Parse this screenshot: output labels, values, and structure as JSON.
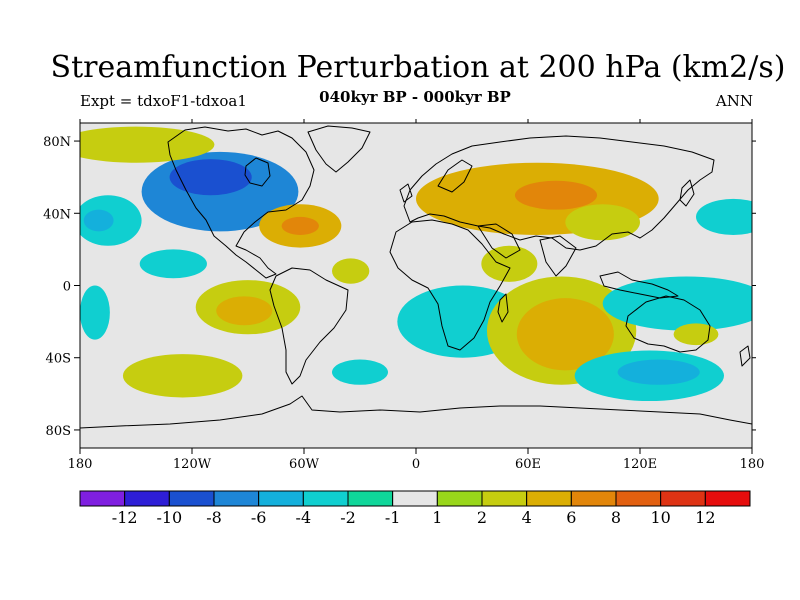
{
  "figure": {
    "title": "Streamfunction Perturbation at 200 hPa (km2/s)",
    "left_label": "Expt = tdxoF1-tdxoa1",
    "center_label": "040kyr BP - 000kyr BP",
    "right_label": "ANN"
  },
  "axes": {
    "lon_ticks": [
      {
        "lon": -180,
        "label": "180"
      },
      {
        "lon": -120,
        "label": "120W"
      },
      {
        "lon": -60,
        "label": "60W"
      },
      {
        "lon": 0,
        "label": "0"
      },
      {
        "lon": 60,
        "label": "60E"
      },
      {
        "lon": 120,
        "label": "120E"
      },
      {
        "lon": 180,
        "label": "180"
      }
    ],
    "lat_ticks": [
      {
        "lat": 80,
        "label": "80N"
      },
      {
        "lat": 40,
        "label": "40N"
      },
      {
        "lat": 0,
        "label": "0"
      },
      {
        "lat": -40,
        "label": "40S"
      },
      {
        "lat": -80,
        "label": "80S"
      }
    ],
    "lon_range": [
      -180,
      180
    ],
    "lat_range": [
      -90,
      90
    ]
  },
  "colorbar": {
    "colors": [
      "#7f1fe0",
      "#2e1ed6",
      "#1a50d0",
      "#1e86d6",
      "#14b0dc",
      "#10cfd0",
      "#10d69a",
      "#e6e6e6",
      "#99d61a",
      "#c6cd10",
      "#dbae04",
      "#e2860a",
      "#e26010",
      "#de3314",
      "#e60d0d"
    ],
    "labels": [
      "-12",
      "-10",
      "-8",
      "-6",
      "-4",
      "-2",
      "-1",
      "1",
      "2",
      "4",
      "6",
      "8",
      "10",
      "12"
    ]
  },
  "map": {
    "background_color": "#e6e6e6",
    "anomalies": [
      {
        "lon": -105,
        "lat": 52,
        "rx": 42,
        "ry": 22,
        "level": -6,
        "note": "negative center over North America"
      },
      {
        "lon": -110,
        "lat": 60,
        "rx": 22,
        "ry": 10,
        "level": -8,
        "note": "strongest negative near Hudson Bay"
      },
      {
        "lon": -150,
        "lat": 78,
        "rx": 42,
        "ry": 10,
        "level": 2,
        "note": "Arctic positive band"
      },
      {
        "lon": -62,
        "lat": 33,
        "rx": 22,
        "ry": 12,
        "level": 4,
        "note": "positive over western Atlantic"
      },
      {
        "lon": -62,
        "lat": 33,
        "rx": 10,
        "ry": 5,
        "level": 6
      },
      {
        "lon": 65,
        "lat": 48,
        "rx": 65,
        "ry": 20,
        "level": 4,
        "note": "positive over Eurasia"
      },
      {
        "lon": 75,
        "lat": 50,
        "rx": 22,
        "ry": 8,
        "level": 6
      },
      {
        "lon": -165,
        "lat": 36,
        "rx": 18,
        "ry": 14,
        "level": -2,
        "note": "negative west Pacific"
      },
      {
        "lon": -170,
        "lat": 36,
        "rx": 8,
        "ry": 6,
        "level": -4
      },
      {
        "lon": 170,
        "lat": 38,
        "rx": 20,
        "ry": 10,
        "level": -2,
        "note": "negative wrap"
      },
      {
        "lon": 100,
        "lat": 35,
        "rx": 20,
        "ry": 10,
        "level": 2
      },
      {
        "lon": -130,
        "lat": 12,
        "rx": 18,
        "ry": 8,
        "level": -2
      },
      {
        "lon": -35,
        "lat": 8,
        "rx": 10,
        "ry": 7,
        "level": 2
      },
      {
        "lon": 50,
        "lat": 12,
        "rx": 15,
        "ry": 10,
        "level": 2
      },
      {
        "lon": -90,
        "lat": -12,
        "rx": 28,
        "ry": 15,
        "level": 2
      },
      {
        "lon": -92,
        "lat": -14,
        "rx": 15,
        "ry": 8,
        "level": 4
      },
      {
        "lon": -172,
        "lat": -15,
        "rx": 8,
        "ry": 15,
        "level": -2
      },
      {
        "lon": 25,
        "lat": -20,
        "rx": 35,
        "ry": 20,
        "level": -2,
        "note": "negative southern Africa"
      },
      {
        "lon": 78,
        "lat": -25,
        "rx": 40,
        "ry": 30,
        "level": 2
      },
      {
        "lon": 80,
        "lat": -27,
        "rx": 26,
        "ry": 20,
        "level": 4
      },
      {
        "lon": 145,
        "lat": -10,
        "rx": 45,
        "ry": 15,
        "level": -2
      },
      {
        "lon": 150,
        "lat": -27,
        "rx": 12,
        "ry": 6,
        "level": 2
      },
      {
        "lon": -125,
        "lat": -50,
        "rx": 32,
        "ry": 12,
        "level": 2
      },
      {
        "lon": 125,
        "lat": -50,
        "rx": 40,
        "ry": 14,
        "level": -2
      },
      {
        "lon": 130,
        "lat": -48,
        "rx": 22,
        "ry": 7,
        "level": -4
      },
      {
        "lon": -30,
        "lat": -48,
        "rx": 15,
        "ry": 7,
        "level": -2
      }
    ]
  }
}
